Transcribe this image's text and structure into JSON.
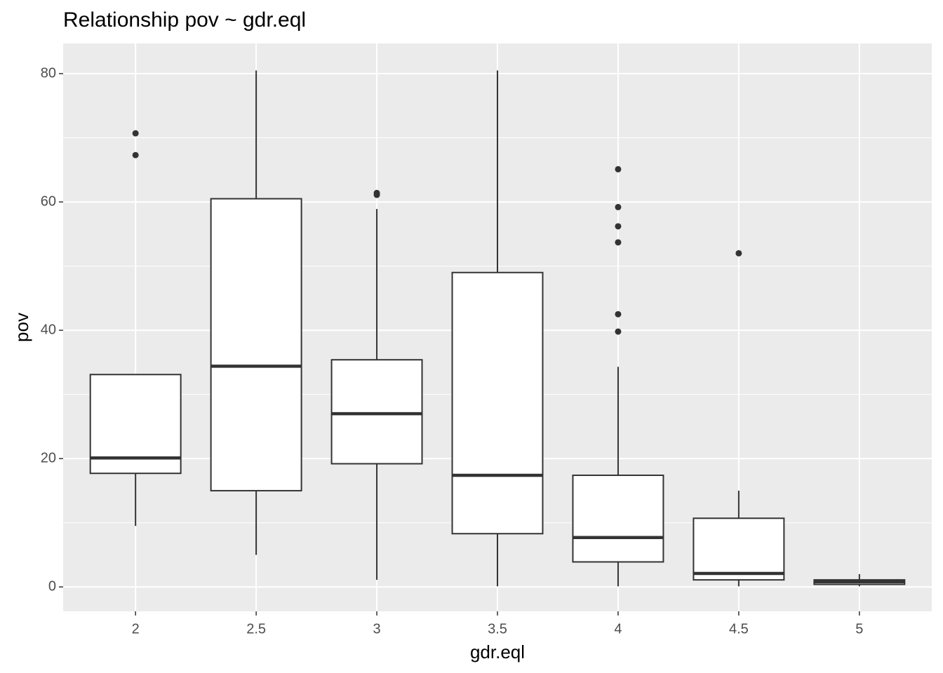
{
  "chart_data": {
    "type": "boxplot",
    "title": "Relationship pov ~ gdr.eql",
    "x_label": "gdr.eql",
    "y_label": "pov",
    "xlim": [
      1.7,
      5.3
    ],
    "xticks": [
      2,
      2.5,
      3,
      3.5,
      4,
      4.5,
      5
    ],
    "ylim": [
      -3.8,
      84.7
    ],
    "yticks": [
      0,
      20,
      40,
      60,
      80
    ],
    "grid": true,
    "fill": "#ffffff",
    "color": "#333333",
    "boxes": [
      {
        "x": 2,
        "low": 9.5,
        "q1": 17.7,
        "median": 20.1,
        "q3": 33.1,
        "high": 33.1,
        "outliers": [
          70.7,
          67.3
        ]
      },
      {
        "x": 2.5,
        "low": 5.0,
        "q1": 15.0,
        "median": 34.4,
        "q3": 60.5,
        "high": 80.5,
        "outliers": []
      },
      {
        "x": 3,
        "low": 1.1,
        "q1": 19.2,
        "median": 27.0,
        "q3": 35.4,
        "high": 58.9,
        "outliers": [
          61.4,
          61.1
        ]
      },
      {
        "x": 3.5,
        "low": 0.1,
        "q1": 8.3,
        "median": 17.4,
        "q3": 49.0,
        "high": 80.5,
        "outliers": []
      },
      {
        "x": 4,
        "low": 0.1,
        "q1": 3.9,
        "median": 7.7,
        "q3": 17.4,
        "high": 34.3,
        "outliers": [
          65.1,
          59.2,
          56.2,
          53.7,
          42.5,
          39.8
        ]
      },
      {
        "x": 4.5,
        "low": 0.1,
        "q1": 1.1,
        "median": 2.1,
        "q3": 10.7,
        "high": 15.0,
        "outliers": [
          52.0
        ]
      },
      {
        "x": 5,
        "low": 0.1,
        "q1": 0.4,
        "median": 0.8,
        "q3": 1.1,
        "high": 2.0,
        "outliers": []
      }
    ]
  }
}
